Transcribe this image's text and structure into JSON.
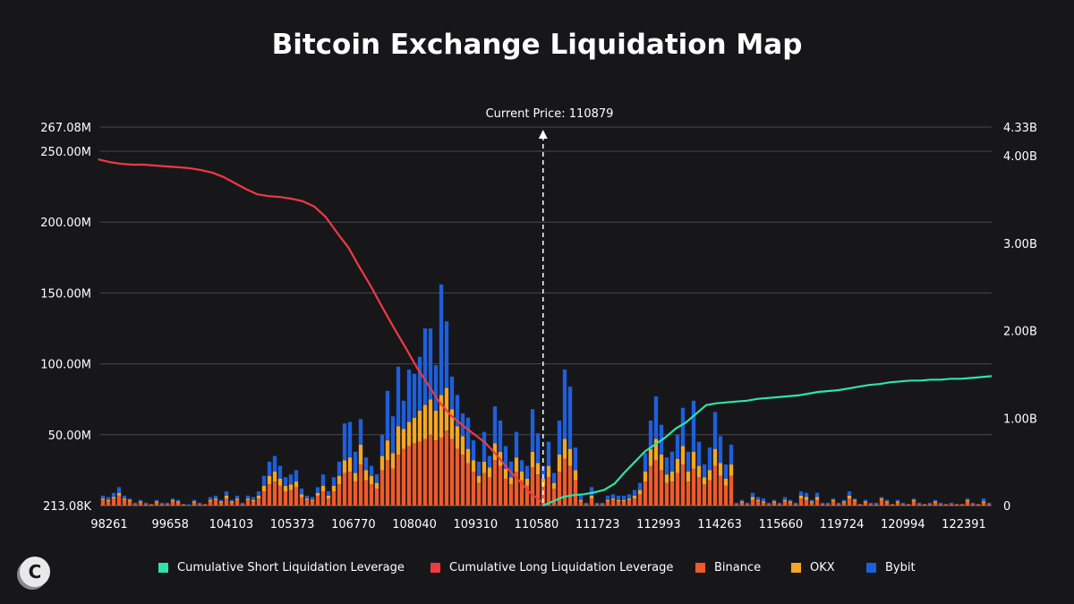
{
  "chart_data": {
    "type": "bar",
    "title": "Bitcoin Exchange Liquidation Map",
    "current_price_label": "Current Price: 110879",
    "current_price": 110879,
    "stacked": true,
    "x_ticks": [
      "98261",
      "99658",
      "104103",
      "105373",
      "106770",
      "108040",
      "109310",
      "110580",
      "111723",
      "112993",
      "114263",
      "115660",
      "119724",
      "120994",
      "122391"
    ],
    "y_left": {
      "ticks": [
        "213.08K",
        "50.00M",
        "100.00M",
        "150.00M",
        "200.00M",
        "250.00M",
        "267.08M"
      ],
      "tick_values": [
        0,
        50,
        100,
        150,
        200,
        250,
        267.08
      ],
      "range": [
        0,
        267.08
      ],
      "unit": "M"
    },
    "y_right": {
      "ticks": [
        "0",
        "1.00B",
        "2.00B",
        "3.00B",
        "4.00B",
        "4.33B"
      ],
      "tick_values": [
        0,
        1,
        2,
        3,
        4,
        4.33
      ],
      "range": [
        0,
        4.33
      ],
      "unit": "B"
    },
    "series": [
      {
        "name": "Binance",
        "color": "#ee5a2b",
        "values": [
          4,
          3,
          5,
          7,
          4,
          3,
          1,
          2,
          1,
          1,
          2,
          1,
          1,
          3,
          2,
          1,
          0,
          2,
          1,
          1,
          3,
          4,
          2,
          5,
          2,
          4,
          1,
          4,
          3,
          5,
          10,
          15,
          17,
          14,
          10,
          11,
          13,
          6,
          4,
          3,
          7,
          10,
          5,
          10,
          15,
          23,
          24,
          17,
          29,
          18,
          15,
          12,
          25,
          32,
          26,
          36,
          40,
          42,
          44,
          45,
          47,
          50,
          46,
          48,
          53,
          47,
          40,
          36,
          30,
          24,
          16,
          23,
          20,
          32,
          28,
          19,
          15,
          24,
          18,
          14,
          27,
          22,
          14,
          20,
          12,
          24,
          33,
          28,
          18,
          3,
          1,
          5,
          1,
          1,
          3,
          4,
          3,
          3,
          4,
          5,
          8,
          17,
          28,
          32,
          25,
          16,
          17,
          23,
          29,
          17,
          26,
          20,
          15,
          18,
          28,
          21,
          14,
          21,
          1,
          2,
          1,
          4,
          3,
          2,
          1,
          2,
          1,
          3,
          2,
          1,
          5,
          4,
          2,
          4,
          1,
          1,
          3,
          1,
          2,
          5,
          3,
          1,
          2,
          1,
          1,
          4,
          2,
          1,
          2,
          1,
          1,
          3,
          1,
          1,
          1,
          2,
          1,
          1,
          1,
          1,
          1,
          3,
          1,
          1,
          2,
          1
        ]
      },
      {
        "name": "OKX",
        "color": "#f5a623",
        "values": [
          1,
          1,
          1,
          2,
          1,
          1,
          0,
          1,
          0,
          0,
          1,
          0,
          0,
          1,
          1,
          0,
          0,
          1,
          0,
          0,
          1,
          1,
          1,
          2,
          1,
          1,
          0,
          1,
          1,
          2,
          4,
          6,
          7,
          5,
          4,
          4,
          4,
          2,
          1,
          1,
          2,
          4,
          2,
          4,
          6,
          9,
          10,
          6,
          14,
          7,
          6,
          4,
          10,
          14,
          11,
          20,
          14,
          17,
          18,
          22,
          24,
          25,
          21,
          30,
          30,
          21,
          16,
          13,
          10,
          8,
          5,
          8,
          7,
          12,
          10,
          7,
          5,
          10,
          6,
          5,
          11,
          8,
          5,
          8,
          4,
          12,
          14,
          12,
          7,
          1,
          0,
          2,
          0,
          0,
          1,
          1,
          1,
          1,
          1,
          2,
          3,
          7,
          12,
          15,
          11,
          6,
          7,
          10,
          13,
          7,
          12,
          8,
          5,
          7,
          12,
          9,
          5,
          8,
          0,
          1,
          0,
          2,
          1,
          1,
          0,
          1,
          0,
          1,
          1,
          0,
          2,
          2,
          1,
          2,
          0,
          0,
          1,
          0,
          1,
          2,
          1,
          0,
          1,
          0,
          0,
          1,
          1,
          0,
          1,
          0,
          0,
          1,
          0,
          0,
          0,
          1,
          0,
          0,
          0,
          0,
          0,
          1,
          0,
          0,
          1,
          0
        ]
      },
      {
        "name": "Bybit",
        "color": "#1e5fdc",
        "values": [
          2,
          2,
          3,
          4,
          2,
          1,
          1,
          1,
          1,
          0,
          1,
          1,
          1,
          1,
          1,
          0,
          1,
          1,
          1,
          0,
          2,
          2,
          1,
          3,
          1,
          2,
          1,
          2,
          2,
          3,
          7,
          10,
          11,
          9,
          6,
          7,
          8,
          4,
          2,
          2,
          4,
          8,
          3,
          6,
          10,
          26,
          25,
          15,
          18,
          9,
          7,
          6,
          15,
          35,
          26,
          42,
          20,
          37,
          31,
          38,
          54,
          50,
          32,
          78,
          47,
          23,
          22,
          16,
          22,
          14,
          10,
          21,
          8,
          26,
          22,
          16,
          11,
          18,
          8,
          9,
          30,
          21,
          9,
          17,
          7,
          24,
          49,
          44,
          16,
          4,
          1,
          6,
          1,
          1,
          3,
          3,
          3,
          3,
          3,
          4,
          5,
          13,
          20,
          30,
          21,
          12,
          14,
          17,
          27,
          14,
          36,
          17,
          9,
          16,
          26,
          19,
          10,
          14,
          1,
          1,
          1,
          3,
          2,
          2,
          1,
          1,
          1,
          2,
          1,
          1,
          3,
          3,
          1,
          3,
          1,
          1,
          1,
          1,
          1,
          3,
          1,
          0,
          1,
          1,
          1,
          1,
          1,
          0,
          1,
          1,
          0,
          1,
          1,
          0,
          1,
          1,
          1,
          0,
          1,
          0,
          0,
          1,
          1,
          0,
          2,
          1
        ]
      },
      {
        "name": "Cumulative Short Liquidation Leverage",
        "color": "#2fe3a8",
        "axis": "right",
        "x_range": [
          "110880",
          "124450"
        ],
        "values": [
          0,
          0.05,
          0.1,
          0.12,
          0.13,
          0.15,
          0.18,
          0.25,
          0.38,
          0.5,
          0.62,
          0.7,
          0.78,
          0.88,
          0.95,
          1.05,
          1.15,
          1.17,
          1.18,
          1.19,
          1.2,
          1.22,
          1.23,
          1.24,
          1.25,
          1.26,
          1.28,
          1.3,
          1.31,
          1.32,
          1.34,
          1.36,
          1.38,
          1.39,
          1.41,
          1.42,
          1.43,
          1.43,
          1.44,
          1.44,
          1.45,
          1.45,
          1.46,
          1.47,
          1.48
        ]
      },
      {
        "name": "Cumulative Long Liquidation Leverage",
        "color": "#ee3a42",
        "axis": "right",
        "x_range": [
          "98200",
          "110850"
        ],
        "values": [
          3.96,
          3.93,
          3.91,
          3.9,
          3.9,
          3.89,
          3.88,
          3.87,
          3.86,
          3.84,
          3.81,
          3.76,
          3.69,
          3.62,
          3.56,
          3.54,
          3.53,
          3.51,
          3.48,
          3.42,
          3.3,
          3.12,
          2.95,
          2.72,
          2.5,
          2.26,
          2.03,
          1.81,
          1.58,
          1.38,
          1.18,
          1.03,
          0.92,
          0.82,
          0.72,
          0.58,
          0.42,
          0.28,
          0.14,
          0.04
        ]
      }
    ]
  },
  "legend": [
    {
      "label": "Cumulative Short Liquidation Leverage",
      "color": "#2fe3a8"
    },
    {
      "label": "Cumulative Long Liquidation Leverage",
      "color": "#ee3a42"
    },
    {
      "label": "Binance",
      "color": "#ee5a2b"
    },
    {
      "label": "OKX",
      "color": "#f5a623"
    },
    {
      "label": "Bybit",
      "color": "#1e5fdc"
    }
  ],
  "logo_text": "C"
}
